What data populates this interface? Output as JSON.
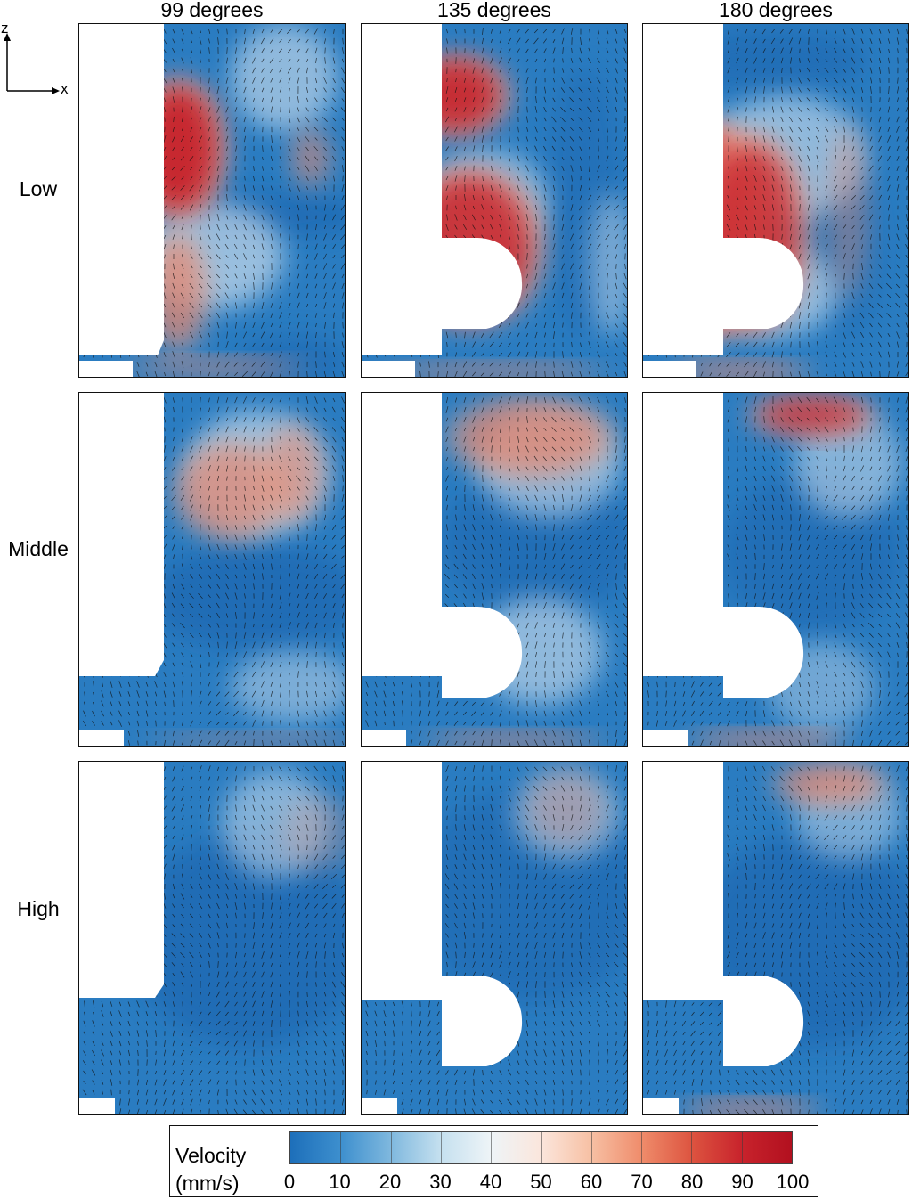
{
  "columns": [
    "99 degrees",
    "135 degrees",
    "180 degrees"
  ],
  "rows": [
    "Low",
    "Middle",
    "High"
  ],
  "axes": {
    "vertical": "z",
    "horizontal": "x"
  },
  "legend": {
    "title_line1": "Velocity",
    "title_line2": "(mm/s)",
    "ticks": [
      "0",
      "10",
      "20",
      "30",
      "40",
      "50",
      "60",
      "70",
      "80",
      "90",
      "100"
    ],
    "range": [
      0,
      100
    ],
    "colors": [
      "#1d6fba",
      "#3d8fce",
      "#7fb8de",
      "#c5e0ef",
      "#eef4f7",
      "#fbe6dc",
      "#f7c0a4",
      "#ef8c6b",
      "#dd5440",
      "#c8232c",
      "#b2101f"
    ]
  },
  "field": {
    "low_color": "#2a7cc1",
    "mid_color": "#f4f6f8",
    "high_color": "#c8202c"
  }
}
